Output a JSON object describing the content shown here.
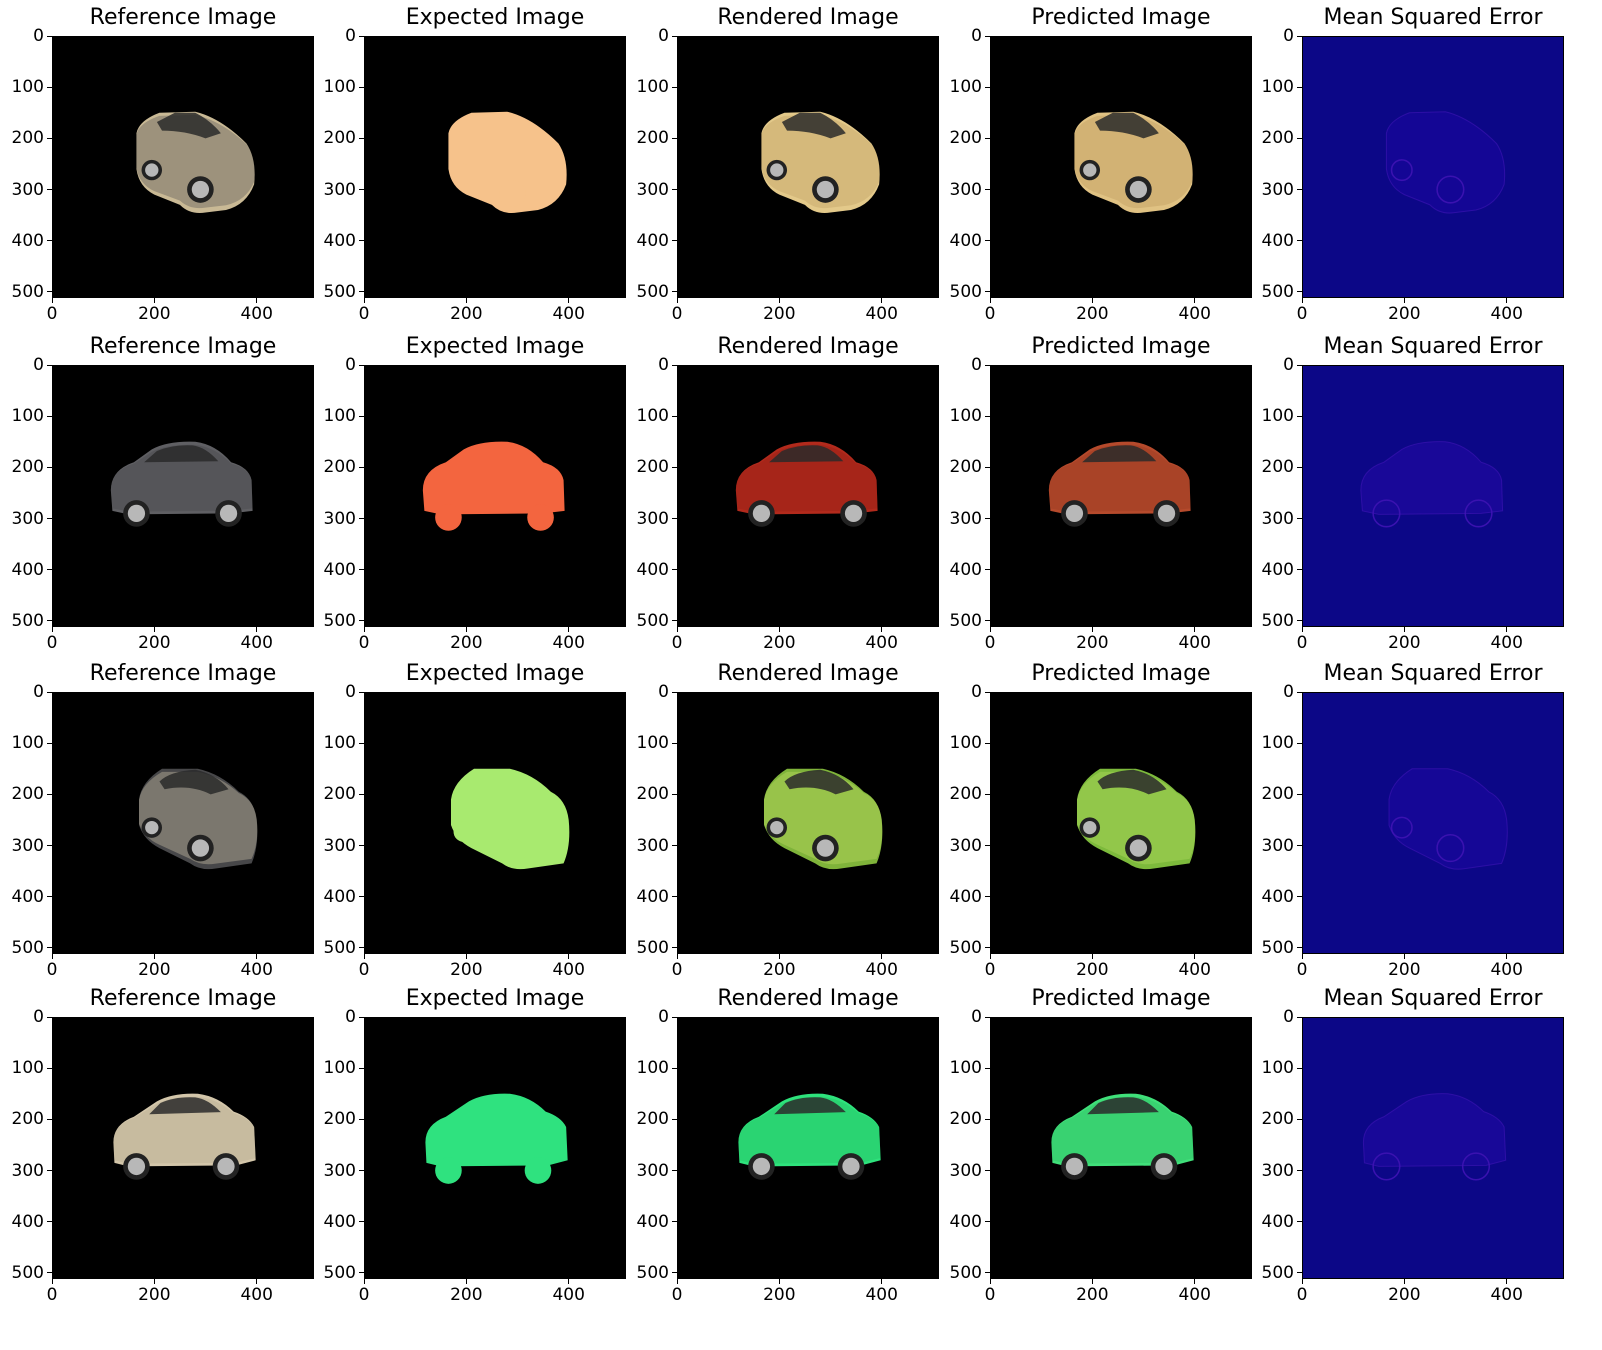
{
  "figure": {
    "rows": [
      {
        "panels": [
          {
            "title": "Reference Image",
            "kind": "reference",
            "scene": {
              "body": "#c9b995",
              "body2": "#4a4a4e",
              "pose": "front34"
            }
          },
          {
            "title": "Expected Image",
            "kind": "mask",
            "scene": {
              "body": "#f6c28b",
              "pose": "front34"
            }
          },
          {
            "title": "Rendered Image",
            "kind": "render",
            "scene": {
              "body": "#e3c98a",
              "body2": "#b99a5f",
              "pose": "front34"
            }
          },
          {
            "title": "Predicted Image",
            "kind": "render",
            "scene": {
              "body": "#e0c283",
              "body2": "#b8955a",
              "pose": "front34"
            }
          },
          {
            "title": "Mean Squared Error",
            "kind": "mse",
            "scene": {
              "body": "#1b06a0",
              "pose": "front34"
            }
          }
        ]
      },
      {
        "panels": [
          {
            "title": "Reference Image",
            "kind": "reference",
            "scene": {
              "body": "#5f5f63",
              "body2": "#464649",
              "pose": "side"
            }
          },
          {
            "title": "Expected Image",
            "kind": "mask",
            "scene": {
              "body": "#f3653f",
              "pose": "side"
            }
          },
          {
            "title": "Rendered Image",
            "kind": "render",
            "scene": {
              "body": "#b22a1c",
              "body2": "#8f1e13",
              "pose": "side"
            }
          },
          {
            "title": "Predicted Image",
            "kind": "render",
            "scene": {
              "body": "#b54a2c",
              "body2": "#93361f",
              "pose": "side"
            }
          },
          {
            "title": "Mean Squared Error",
            "kind": "mse",
            "scene": {
              "body": "#2409a6",
              "pose": "side"
            }
          }
        ]
      },
      {
        "panels": [
          {
            "title": "Reference Image",
            "kind": "reference",
            "scene": {
              "body": "#474749",
              "body2": "#ddd0b4",
              "pose": "rear34"
            }
          },
          {
            "title": "Expected Image",
            "kind": "mask",
            "scene": {
              "body": "#a8ea6f",
              "pose": "rear34"
            }
          },
          {
            "title": "Rendered Image",
            "kind": "render",
            "scene": {
              "body": "#7fb33a",
              "body2": "#c9e36a",
              "pose": "rear34"
            }
          },
          {
            "title": "Predicted Image",
            "kind": "render",
            "scene": {
              "body": "#7dba3c",
              "body2": "#b9e064",
              "pose": "rear34"
            }
          },
          {
            "title": "Mean Squared Error",
            "kind": "mse",
            "scene": {
              "body": "#1d07a3",
              "pose": "rear34"
            }
          }
        ]
      },
      {
        "panels": [
          {
            "title": "Reference Image",
            "kind": "reference",
            "scene": {
              "body": "#d3c6aa",
              "body2": "#b3a78c",
              "pose": "side2"
            }
          },
          {
            "title": "Expected Image",
            "kind": "mask",
            "scene": {
              "body": "#2fe27f",
              "pose": "side2"
            }
          },
          {
            "title": "Rendered Image",
            "kind": "render",
            "scene": {
              "body": "#2ee37c",
              "body2": "#22b862",
              "pose": "side2"
            }
          },
          {
            "title": "Predicted Image",
            "kind": "render",
            "scene": {
              "body": "#40e07a",
              "body2": "#2db760",
              "pose": "side2"
            }
          },
          {
            "title": "Mean Squared Error",
            "kind": "mse",
            "scene": {
              "body": "#2209a6",
              "pose": "side2"
            }
          }
        ]
      }
    ],
    "axes": {
      "xticks": [
        "0",
        "200",
        "400"
      ],
      "yticks": [
        "0",
        "100",
        "200",
        "300",
        "400",
        "500"
      ],
      "xtick_values": [
        0,
        200,
        400
      ],
      "ytick_values": [
        0,
        100,
        200,
        300,
        400,
        500
      ],
      "extent": 512
    },
    "colors": {
      "background": "#000000",
      "mse_background": "#0c0787",
      "wheel": "#b8b8b8",
      "tire": "#222222",
      "window": "#2a2a2a"
    }
  }
}
